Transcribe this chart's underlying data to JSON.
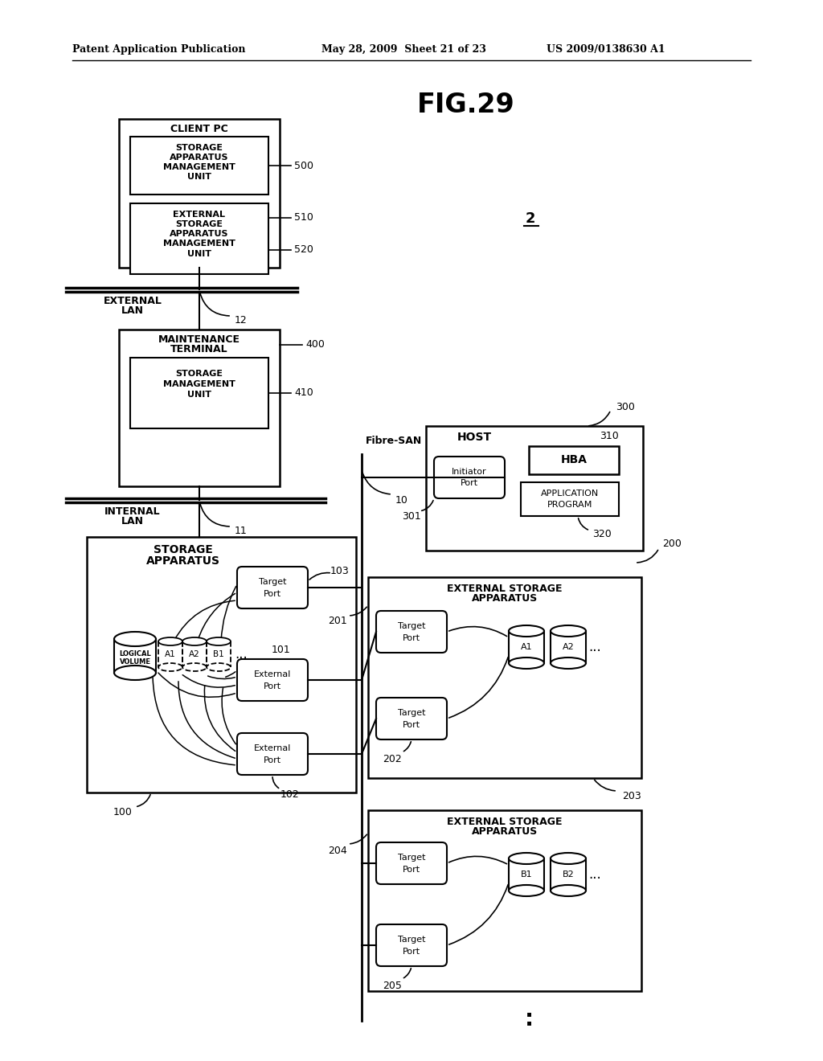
{
  "bg_color": "#ffffff",
  "header_left": "Patent Application Publication",
  "header_mid": "May 28, 2009  Sheet 21 of 23",
  "header_right": "US 2009/0138630 A1",
  "fig_title": "FIG.29"
}
